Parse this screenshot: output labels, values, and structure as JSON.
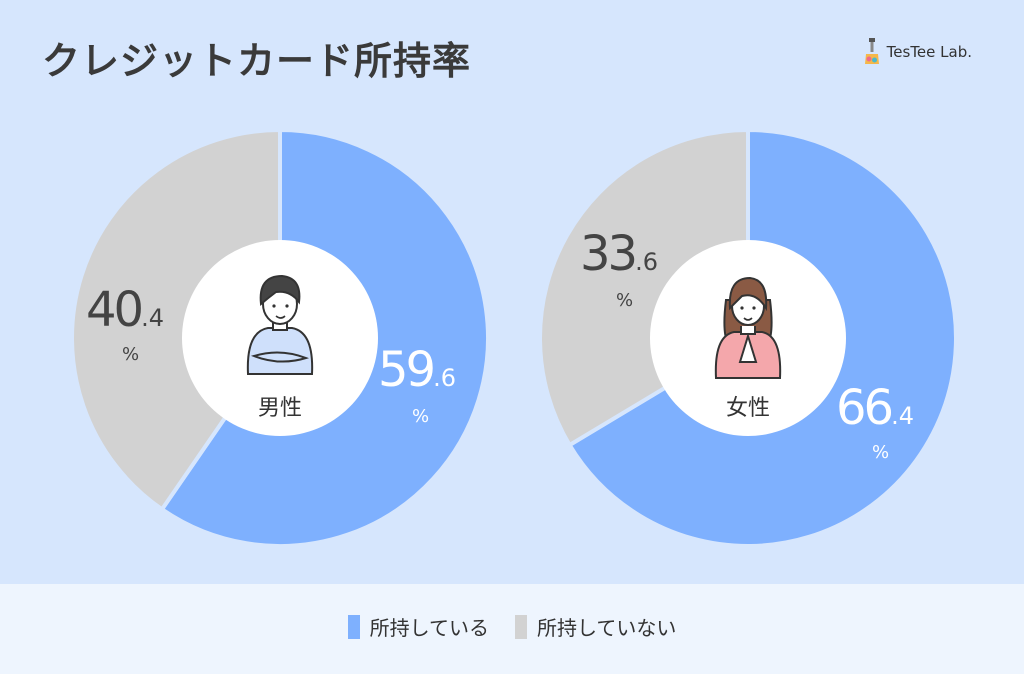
{
  "title": "クレジットカード所持率",
  "brand": {
    "name": "TesTee Lab.",
    "icon": "testee-logo-icon"
  },
  "colors": {
    "own": "#7eb0fe",
    "not_own": "#d2d2d2",
    "background": "#d6e6fd",
    "legend_bg": "#eef5fe"
  },
  "chart_data": [
    {
      "type": "pie",
      "center_label": "男性",
      "categories": [
        "所持している",
        "所持していない"
      ],
      "values": [
        59.6,
        40.4
      ],
      "value_labels": [
        {
          "main": "59",
          "decimal": ".6",
          "unit": "%"
        },
        {
          "main": "40",
          "decimal": ".4",
          "unit": "%"
        }
      ]
    },
    {
      "type": "pie",
      "center_label": "女性",
      "categories": [
        "所持している",
        "所持していない"
      ],
      "values": [
        66.4,
        33.6
      ],
      "value_labels": [
        {
          "main": "66",
          "decimal": ".4",
          "unit": "%"
        },
        {
          "main": "33",
          "decimal": ".6",
          "unit": "%"
        }
      ]
    }
  ],
  "legend": [
    {
      "label": "所持している",
      "color": "#7eb0fe"
    },
    {
      "label": "所持していない",
      "color": "#d2d2d2"
    }
  ]
}
